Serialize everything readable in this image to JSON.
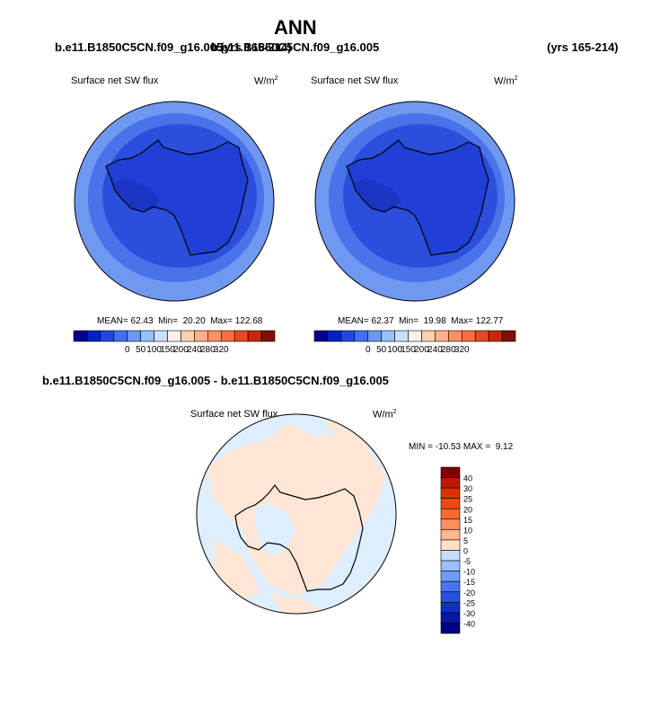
{
  "page": {
    "title": "ANN",
    "case1_name": "b.e11.B1850C5CN.f09_g16.005",
    "case1_years": "(yrs 165-214)",
    "case2_name": "b.e11.B1850C5CN.f09_g16.005",
    "case2_years": "(yrs 165-214)",
    "diff_title": "b.e11.B1850C5CN.f09_g16.005 - b.e11.B1850C5CN.f09_g16.005"
  },
  "colors": {
    "ocean_far": "#6f98f0",
    "ocean_near": "#4a72ea",
    "ice_zone": "#2b4fdc",
    "continent": "#1f3fd6",
    "continent_dark": "#1a35c4",
    "coast": "#000000",
    "diff_neg": "#dfeeff",
    "diff_pos": "#ffe6d4"
  },
  "chart_data": [
    {
      "type": "heatmap",
      "title": "Surface net SW flux",
      "units": "W/m2",
      "stats": {
        "mean": "62.43",
        "min": "20.20",
        "max": "122.68"
      },
      "colorbar": {
        "ticks": [
          "0",
          "50",
          "100",
          "150",
          "200",
          "240",
          "280",
          "320"
        ],
        "colors": [
          "#000090",
          "#0020c8",
          "#2048e0",
          "#4070f0",
          "#6898f8",
          "#98c0fc",
          "#c8e0ff",
          "#fff0e8",
          "#ffd0b0",
          "#ffb088",
          "#ff9060",
          "#f87040",
          "#e84820",
          "#c82808",
          "#801000"
        ]
      }
    },
    {
      "type": "heatmap",
      "title": "Surface net SW flux",
      "units": "W/m2",
      "stats": {
        "mean": "62.37",
        "min": "19.98",
        "max": "122.77"
      },
      "colorbar": {
        "ticks": [
          "0",
          "50",
          "100",
          "150",
          "200",
          "240",
          "280",
          "320"
        ],
        "colors": [
          "#000090",
          "#0020c8",
          "#2048e0",
          "#4070f0",
          "#6898f8",
          "#98c0fc",
          "#c8e0ff",
          "#fff0e8",
          "#ffd0b0",
          "#ffb088",
          "#ff9060",
          "#f87040",
          "#e84820",
          "#c82808",
          "#801000"
        ]
      }
    },
    {
      "type": "heatmap",
      "title": "Surface net SW flux",
      "units": "W/m2",
      "stats": {
        "min": "-10.53",
        "max": "9.12"
      },
      "colorbar": {
        "ticks": [
          "40",
          "30",
          "25",
          "20",
          "15",
          "10",
          "5",
          "0",
          "-5",
          "-10",
          "-15",
          "-20",
          "-25",
          "-30",
          "-40"
        ],
        "colors": [
          "#800000",
          "#c01800",
          "#e03000",
          "#f04810",
          "#f86830",
          "#fc9060",
          "#ffb890",
          "#ffe0c8",
          "#c8dcff",
          "#9cc0ff",
          "#6e9cf8",
          "#4676f0",
          "#2650e0",
          "#1030c0",
          "#0818a0",
          "#000080"
        ]
      }
    }
  ]
}
